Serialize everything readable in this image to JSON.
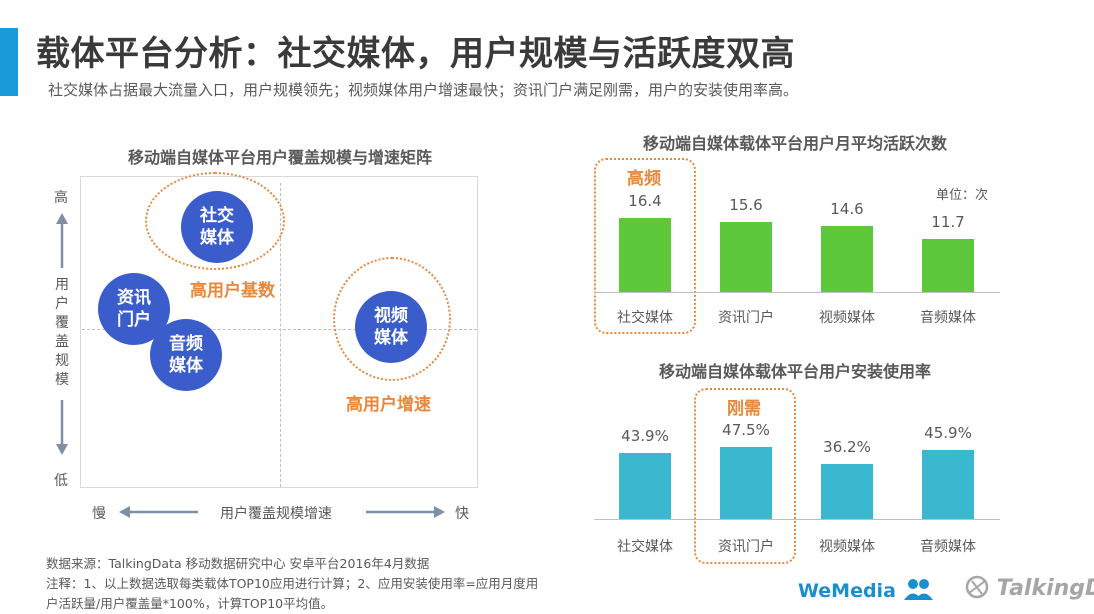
{
  "header": {
    "title": "载体平台分析：社交媒体，用户规模与活跃度双高",
    "subtitle": "社交媒体占据最大流量入口，用户规模领先；视频媒体用户增速最快；资讯门户满足刚需，用户的安装使用率高。"
  },
  "matrix": {
    "title": "移动端自媒体平台用户覆盖规模与增速矩阵",
    "y_high": "高",
    "y_low": "低",
    "y_label": "用户覆盖规模",
    "x_slow": "慢",
    "x_fast": "快",
    "x_label": "用户覆盖规模增速",
    "bubble_social": "社交媒体",
    "bubble_news": "资讯门户",
    "bubble_audio": "音频媒体",
    "bubble_video": "视频媒体",
    "label_base": "高用户基数",
    "label_growth": "高用户增速"
  },
  "chart_data": [
    {
      "type": "bar",
      "title": "移动端自媒体载体平台用户月平均活跃次数",
      "unit_label": "单位：次",
      "highlight_label": "高频",
      "categories": [
        "社交媒体",
        "资讯门户",
        "视频媒体",
        "音频媒体"
      ],
      "values": [
        16.4,
        15.6,
        14.6,
        11.7
      ],
      "value_labels": [
        "16.4",
        "15.6",
        "14.6",
        "11.7"
      ],
      "color": "#5cc83a",
      "ylim": [
        0,
        20
      ]
    },
    {
      "type": "bar",
      "title": "移动端自媒体载体平台用户安装使用率",
      "highlight_label": "刚需",
      "categories": [
        "社交媒体",
        "资讯门户",
        "视频媒体",
        "音频媒体"
      ],
      "values": [
        43.9,
        47.5,
        36.2,
        45.9
      ],
      "value_labels": [
        "43.9%",
        "47.5%",
        "36.2%",
        "45.9%"
      ],
      "color": "#3ab8cf",
      "ylim": [
        0,
        55
      ]
    }
  ],
  "footer": {
    "source": "数据来源：TalkingData 移动数据研究中心 安卓平台2016年4月数据",
    "note_line1": "注释：1、以上数据选取每类载体TOP10应用进行计算；2、应用安装使用率=应用月度用",
    "note_line2": "户活跃量/用户覆盖量*100%，计算TOP10平均值。",
    "logo_wemedia": "WeMedia",
    "logo_talkingdata": "TalkingData"
  }
}
